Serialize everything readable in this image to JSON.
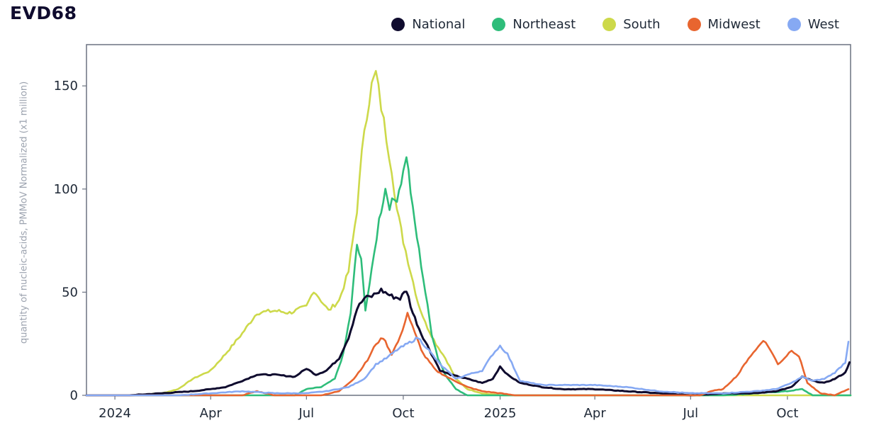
{
  "title": "EVD68",
  "legend": [
    {
      "label": "National",
      "color": "#0f0b2e"
    },
    {
      "label": "Northeast",
      "color": "#2ebd7a"
    },
    {
      "label": "South",
      "color": "#cdd94a"
    },
    {
      "label": "Midwest",
      "color": "#e8652f"
    },
    {
      "label": "West",
      "color": "#86a9f3"
    }
  ],
  "chart_data": {
    "type": "line",
    "title": "EVD68",
    "xlabel": "",
    "ylabel": "quantity of nucleic-acids, PMMoV Normalized (x1 million)",
    "xlim": [
      "2023-12-05",
      "2025-11-30"
    ],
    "ylim": [
      0,
      170
    ],
    "x_ticks": [
      {
        "date": "2024-01-01",
        "label": "2024"
      },
      {
        "date": "2024-04-01",
        "label": "Apr"
      },
      {
        "date": "2024-07-01",
        "label": "Jul"
      },
      {
        "date": "2024-10-01",
        "label": "Oct"
      },
      {
        "date": "2025-01-01",
        "label": "2025"
      },
      {
        "date": "2025-04-01",
        "label": "Apr"
      },
      {
        "date": "2025-07-01",
        "label": "Jul"
      },
      {
        "date": "2025-10-01",
        "label": "Oct"
      }
    ],
    "y_ticks": [
      0,
      50,
      100,
      150
    ],
    "series": [
      {
        "name": "South",
        "color": "#cdd94a",
        "points": [
          [
            "2023-12-05",
            0
          ],
          [
            "2024-01-15",
            0
          ],
          [
            "2024-02-15",
            1
          ],
          [
            "2024-03-01",
            3
          ],
          [
            "2024-03-15",
            8
          ],
          [
            "2024-04-01",
            12
          ],
          [
            "2024-04-15",
            20
          ],
          [
            "2024-05-01",
            30
          ],
          [
            "2024-05-15",
            40
          ],
          [
            "2024-06-01",
            41
          ],
          [
            "2024-06-15",
            40
          ],
          [
            "2024-07-01",
            43
          ],
          [
            "2024-07-08",
            51
          ],
          [
            "2024-07-15",
            46
          ],
          [
            "2024-07-22",
            41
          ],
          [
            "2024-08-01",
            46
          ],
          [
            "2024-08-10",
            60
          ],
          [
            "2024-08-18",
            90
          ],
          [
            "2024-08-25",
            130
          ],
          [
            "2024-09-01",
            150
          ],
          [
            "2024-09-05",
            156
          ],
          [
            "2024-09-10",
            140
          ],
          [
            "2024-09-15",
            125
          ],
          [
            "2024-09-20",
            110
          ],
          [
            "2024-09-25",
            90
          ],
          [
            "2024-10-01",
            75
          ],
          [
            "2024-10-08",
            60
          ],
          [
            "2024-10-15",
            45
          ],
          [
            "2024-10-22",
            35
          ],
          [
            "2024-11-01",
            25
          ],
          [
            "2024-11-10",
            18
          ],
          [
            "2024-11-20",
            8
          ],
          [
            "2024-12-01",
            3
          ],
          [
            "2024-12-15",
            1
          ],
          [
            "2025-01-01",
            0
          ],
          [
            "2025-11-30",
            0
          ]
        ]
      },
      {
        "name": "Northeast",
        "color": "#2ebd7a",
        "points": [
          [
            "2023-12-05",
            0
          ],
          [
            "2024-06-20",
            0
          ],
          [
            "2024-07-01",
            3
          ],
          [
            "2024-07-15",
            4
          ],
          [
            "2024-07-28",
            8
          ],
          [
            "2024-08-05",
            20
          ],
          [
            "2024-08-12",
            40
          ],
          [
            "2024-08-18",
            73
          ],
          [
            "2024-08-22",
            65
          ],
          [
            "2024-08-26",
            42
          ],
          [
            "2024-09-01",
            60
          ],
          [
            "2024-09-08",
            85
          ],
          [
            "2024-09-14",
            100
          ],
          [
            "2024-09-18",
            92
          ],
          [
            "2024-09-25",
            96
          ],
          [
            "2024-10-01",
            108
          ],
          [
            "2024-10-04",
            117
          ],
          [
            "2024-10-10",
            90
          ],
          [
            "2024-10-16",
            70
          ],
          [
            "2024-10-22",
            50
          ],
          [
            "2024-10-28",
            30
          ],
          [
            "2024-11-03",
            18
          ],
          [
            "2024-11-10",
            10
          ],
          [
            "2024-11-20",
            3
          ],
          [
            "2024-12-01",
            0
          ],
          [
            "2025-08-01",
            0
          ],
          [
            "2025-09-01",
            1
          ],
          [
            "2025-10-01",
            2
          ],
          [
            "2025-10-15",
            3
          ],
          [
            "2025-10-25",
            0
          ],
          [
            "2025-11-30",
            0
          ]
        ]
      },
      {
        "name": "National",
        "color": "#0f0b2e",
        "points": [
          [
            "2023-12-05",
            0
          ],
          [
            "2024-01-15",
            0
          ],
          [
            "2024-02-15",
            1
          ],
          [
            "2024-03-15",
            2
          ],
          [
            "2024-04-01",
            3
          ],
          [
            "2024-04-15",
            4
          ],
          [
            "2024-05-01",
            7
          ],
          [
            "2024-05-15",
            10
          ],
          [
            "2024-06-01",
            10
          ],
          [
            "2024-06-20",
            9
          ],
          [
            "2024-07-01",
            13
          ],
          [
            "2024-07-10",
            10
          ],
          [
            "2024-07-20",
            12
          ],
          [
            "2024-08-01",
            18
          ],
          [
            "2024-08-10",
            28
          ],
          [
            "2024-08-18",
            42
          ],
          [
            "2024-08-25",
            47
          ],
          [
            "2024-09-01",
            48
          ],
          [
            "2024-09-10",
            51
          ],
          [
            "2024-09-20",
            48
          ],
          [
            "2024-09-28",
            47
          ],
          [
            "2024-10-04",
            51
          ],
          [
            "2024-10-10",
            40
          ],
          [
            "2024-10-18",
            30
          ],
          [
            "2024-10-26",
            22
          ],
          [
            "2024-11-05",
            12
          ],
          [
            "2024-11-15",
            10
          ],
          [
            "2024-12-01",
            8
          ],
          [
            "2024-12-15",
            6
          ],
          [
            "2024-12-25",
            8
          ],
          [
            "2025-01-01",
            14
          ],
          [
            "2025-01-08",
            10
          ],
          [
            "2025-01-20",
            6
          ],
          [
            "2025-02-10",
            4
          ],
          [
            "2025-03-01",
            3
          ],
          [
            "2025-04-01",
            3
          ],
          [
            "2025-05-01",
            2
          ],
          [
            "2025-06-01",
            1
          ],
          [
            "2025-07-01",
            0
          ],
          [
            "2025-08-01",
            1
          ],
          [
            "2025-09-01",
            1
          ],
          [
            "2025-09-20",
            2
          ],
          [
            "2025-10-05",
            4
          ],
          [
            "2025-10-15",
            9
          ],
          [
            "2025-10-25",
            7
          ],
          [
            "2025-11-05",
            6
          ],
          [
            "2025-11-15",
            8
          ],
          [
            "2025-11-25",
            11
          ],
          [
            "2025-11-29",
            16
          ]
        ]
      },
      {
        "name": "Midwest",
        "color": "#e8652f",
        "points": [
          [
            "2023-12-05",
            0
          ],
          [
            "2024-05-01",
            0
          ],
          [
            "2024-05-15",
            2
          ],
          [
            "2024-06-01",
            0
          ],
          [
            "2024-07-15",
            0
          ],
          [
            "2024-08-01",
            2
          ],
          [
            "2024-08-15",
            8
          ],
          [
            "2024-08-28",
            17
          ],
          [
            "2024-09-05",
            25
          ],
          [
            "2024-09-12",
            28
          ],
          [
            "2024-09-20",
            20
          ],
          [
            "2024-09-28",
            28
          ],
          [
            "2024-10-05",
            40
          ],
          [
            "2024-10-12",
            30
          ],
          [
            "2024-10-20",
            20
          ],
          [
            "2024-11-01",
            12
          ],
          [
            "2024-11-15",
            8
          ],
          [
            "2024-12-01",
            4
          ],
          [
            "2024-12-15",
            2
          ],
          [
            "2025-01-01",
            1
          ],
          [
            "2025-01-15",
            0
          ],
          [
            "2025-07-10",
            0
          ],
          [
            "2025-07-20",
            2
          ],
          [
            "2025-08-01",
            3
          ],
          [
            "2025-08-15",
            10
          ],
          [
            "2025-08-25",
            18
          ],
          [
            "2025-09-01",
            22
          ],
          [
            "2025-09-08",
            27
          ],
          [
            "2025-09-15",
            22
          ],
          [
            "2025-09-22",
            15
          ],
          [
            "2025-09-28",
            18
          ],
          [
            "2025-10-05",
            22
          ],
          [
            "2025-10-12",
            19
          ],
          [
            "2025-10-20",
            6
          ],
          [
            "2025-11-01",
            1
          ],
          [
            "2025-11-15",
            0
          ],
          [
            "2025-11-28",
            3
          ]
        ]
      },
      {
        "name": "West",
        "color": "#86a9f3",
        "points": [
          [
            "2023-12-05",
            0
          ],
          [
            "2024-01-15",
            0
          ],
          [
            "2024-03-01",
            0
          ],
          [
            "2024-04-01",
            1
          ],
          [
            "2024-05-01",
            2
          ],
          [
            "2024-06-01",
            1
          ],
          [
            "2024-07-01",
            1
          ],
          [
            "2024-07-20",
            2
          ],
          [
            "2024-08-10",
            4
          ],
          [
            "2024-08-25",
            8
          ],
          [
            "2024-09-05",
            15
          ],
          [
            "2024-09-15",
            18
          ],
          [
            "2024-09-25",
            22
          ],
          [
            "2024-10-05",
            25
          ],
          [
            "2024-10-15",
            28
          ],
          [
            "2024-10-25",
            22
          ],
          [
            "2024-11-05",
            15
          ],
          [
            "2024-11-20",
            8
          ],
          [
            "2024-12-01",
            10
          ],
          [
            "2024-12-15",
            12
          ],
          [
            "2024-12-25",
            20
          ],
          [
            "2025-01-01",
            24
          ],
          [
            "2025-01-08",
            20
          ],
          [
            "2025-01-20",
            7
          ],
          [
            "2025-02-10",
            5
          ],
          [
            "2025-03-01",
            5
          ],
          [
            "2025-04-01",
            5
          ],
          [
            "2025-05-01",
            4
          ],
          [
            "2025-06-01",
            2
          ],
          [
            "2025-07-01",
            1
          ],
          [
            "2025-08-01",
            1
          ],
          [
            "2025-09-01",
            2
          ],
          [
            "2025-09-20",
            3
          ],
          [
            "2025-10-05",
            6
          ],
          [
            "2025-10-15",
            9
          ],
          [
            "2025-10-25",
            7
          ],
          [
            "2025-11-05",
            8
          ],
          [
            "2025-11-15",
            11
          ],
          [
            "2025-11-25",
            16
          ],
          [
            "2025-11-28",
            26
          ]
        ]
      }
    ]
  }
}
